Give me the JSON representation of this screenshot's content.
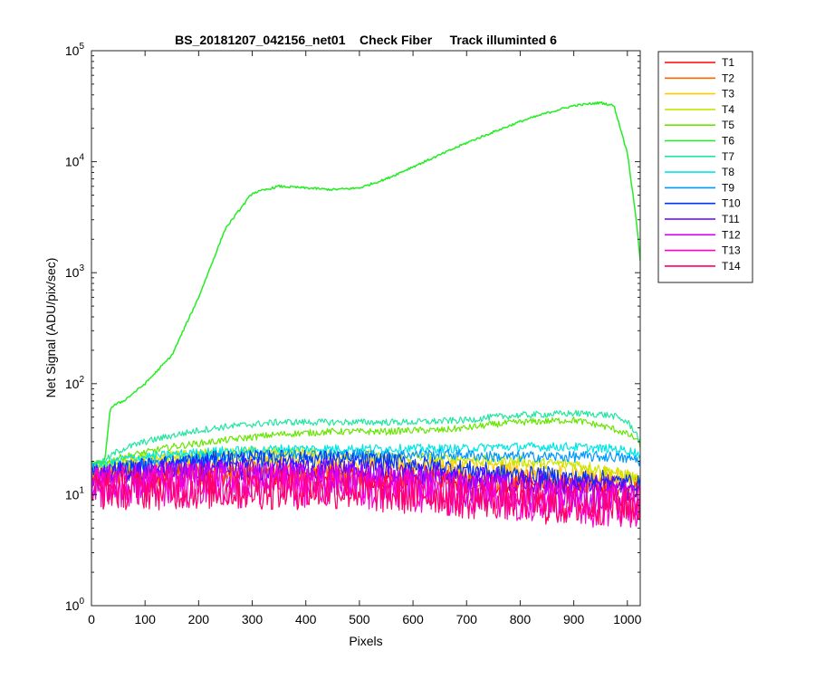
{
  "chart_data": {
    "type": "line",
    "title": "BS_20181207_042156_net01    Check Fiber     Track illuminted 6",
    "xlabel": "Pixels",
    "ylabel": "Net Signal (ADU/pix/sec)",
    "xlim": [
      0,
      1024
    ],
    "ylim": [
      1,
      100000
    ],
    "yscale": "log",
    "grid": false,
    "legend_position": "outside-right-top",
    "x_ticks": [
      "0",
      "100",
      "200",
      "300",
      "400",
      "500",
      "600",
      "700",
      "800",
      "900",
      "1000"
    ],
    "y_ticks": [
      {
        "base": "10",
        "exp": "0"
      },
      {
        "base": "10",
        "exp": "1"
      },
      {
        "base": "10",
        "exp": "2"
      },
      {
        "base": "10",
        "exp": "3"
      },
      {
        "base": "10",
        "exp": "4"
      },
      {
        "base": "10",
        "exp": "5"
      }
    ],
    "x": [
      0,
      25,
      35,
      45,
      60,
      100,
      150,
      200,
      250,
      300,
      350,
      400,
      450,
      500,
      550,
      600,
      650,
      700,
      750,
      800,
      850,
      900,
      950,
      975,
      1000,
      1015,
      1024
    ],
    "series": [
      {
        "name": "T1",
        "color": "#ff0000",
        "noise": 0.1,
        "values": [
          14,
          14,
          14,
          15,
          15,
          15,
          15,
          15,
          15,
          15,
          15,
          15,
          15,
          14,
          14,
          14,
          14,
          13,
          13,
          13,
          12,
          12,
          12,
          12,
          11,
          11,
          11
        ]
      },
      {
        "name": "T2",
        "color": "#ff6600",
        "noise": 0.1,
        "values": [
          15,
          15,
          15,
          15,
          16,
          16,
          16,
          16,
          16,
          16,
          16,
          16,
          16,
          15,
          15,
          15,
          15,
          14,
          14,
          14,
          13,
          13,
          13,
          13,
          12,
          12,
          12
        ]
      },
      {
        "name": "T3",
        "color": "#ffcc00",
        "noise": 0.08,
        "values": [
          17,
          17,
          17,
          18,
          19,
          20,
          21,
          21,
          21,
          21,
          21,
          21,
          20,
          20,
          19,
          19,
          18,
          18,
          17,
          17,
          16,
          16,
          15,
          15,
          14,
          14,
          14
        ]
      },
      {
        "name": "T4",
        "color": "#c8e600",
        "noise": 0.05,
        "values": [
          18,
          18,
          18,
          19,
          20,
          21,
          22,
          23,
          24,
          24,
          24,
          24,
          23,
          23,
          22,
          22,
          21,
          21,
          20,
          20,
          19,
          19,
          17,
          16,
          15,
          14,
          13
        ]
      },
      {
        "name": "T5",
        "color": "#66e600",
        "noise": 0.03,
        "values": [
          19,
          19,
          20,
          21,
          22,
          24,
          27,
          29,
          31,
          33,
          35,
          36,
          37,
          37,
          37,
          38,
          38,
          40,
          43,
          45,
          46,
          47,
          42,
          39,
          35,
          32,
          28
        ]
      },
      {
        "name": "T6",
        "color": "#22ee22",
        "noise": 0.01,
        "values": [
          19,
          20,
          60,
          65,
          70,
          100,
          180,
          600,
          2500,
          5200,
          6000,
          5800,
          5600,
          5800,
          7000,
          9000,
          11500,
          14800,
          18500,
          23000,
          27500,
          32000,
          34000,
          32000,
          12000,
          3500,
          1300
        ]
      },
      {
        "name": "T7",
        "color": "#22e6a0",
        "noise": 0.03,
        "values": [
          19,
          20,
          22,
          24,
          26,
          30,
          34,
          38,
          41,
          43,
          45,
          45,
          45,
          45,
          45,
          45,
          46,
          47,
          50,
          52,
          53,
          54,
          53,
          51,
          45,
          37,
          30
        ]
      },
      {
        "name": "T8",
        "color": "#00e6e6",
        "noise": 0.04,
        "values": [
          18,
          18,
          19,
          20,
          21,
          22,
          23,
          24,
          25,
          25,
          26,
          26,
          26,
          26,
          26,
          26,
          26,
          26,
          27,
          27,
          27,
          27,
          26,
          26,
          25,
          24,
          23
        ]
      },
      {
        "name": "T9",
        "color": "#0099ff",
        "noise": 0.05,
        "values": [
          17,
          17,
          17,
          18,
          18,
          19,
          20,
          21,
          22,
          22,
          23,
          23,
          23,
          23,
          23,
          23,
          23,
          23,
          22,
          22,
          22,
          22,
          22,
          22,
          21,
          21,
          20
        ]
      },
      {
        "name": "T10",
        "color": "#0033ff",
        "noise": 0.08,
        "values": [
          16,
          16,
          16,
          17,
          17,
          18,
          19,
          20,
          21,
          21,
          21,
          21,
          21,
          20,
          20,
          19,
          18,
          17,
          16,
          15,
          15,
          14,
          14,
          13,
          13,
          13,
          12
        ]
      },
      {
        "name": "T11",
        "color": "#6600ff",
        "noise": 0.1,
        "values": [
          15,
          15,
          15,
          15,
          16,
          16,
          17,
          17,
          17,
          17,
          17,
          17,
          17,
          16,
          16,
          15,
          15,
          14,
          14,
          13,
          13,
          12,
          12,
          12,
          11,
          11,
          11
        ]
      },
      {
        "name": "T12",
        "color": "#cc00ff",
        "noise": 0.16,
        "values": [
          13,
          13,
          13,
          13,
          13,
          13,
          14,
          14,
          14,
          14,
          14,
          13,
          13,
          13,
          13,
          12,
          12,
          11,
          11,
          10,
          10,
          10,
          9,
          9,
          9,
          9,
          9
        ]
      },
      {
        "name": "T13",
        "color": "#ff00cc",
        "noise": 0.2,
        "values": [
          12,
          12,
          12,
          12,
          12,
          12,
          12,
          12,
          12,
          12,
          12,
          12,
          12,
          11,
          11,
          11,
          10,
          10,
          10,
          9,
          9,
          8,
          8,
          8,
          8,
          8,
          8
        ]
      },
      {
        "name": "T14",
        "color": "#ff0066",
        "noise": 0.18,
        "values": [
          11,
          11,
          11,
          11,
          11,
          11,
          11,
          11,
          11,
          11,
          11,
          11,
          11,
          11,
          10,
          10,
          10,
          9,
          9,
          9,
          8,
          8,
          8,
          8,
          8,
          8,
          8
        ]
      }
    ]
  }
}
